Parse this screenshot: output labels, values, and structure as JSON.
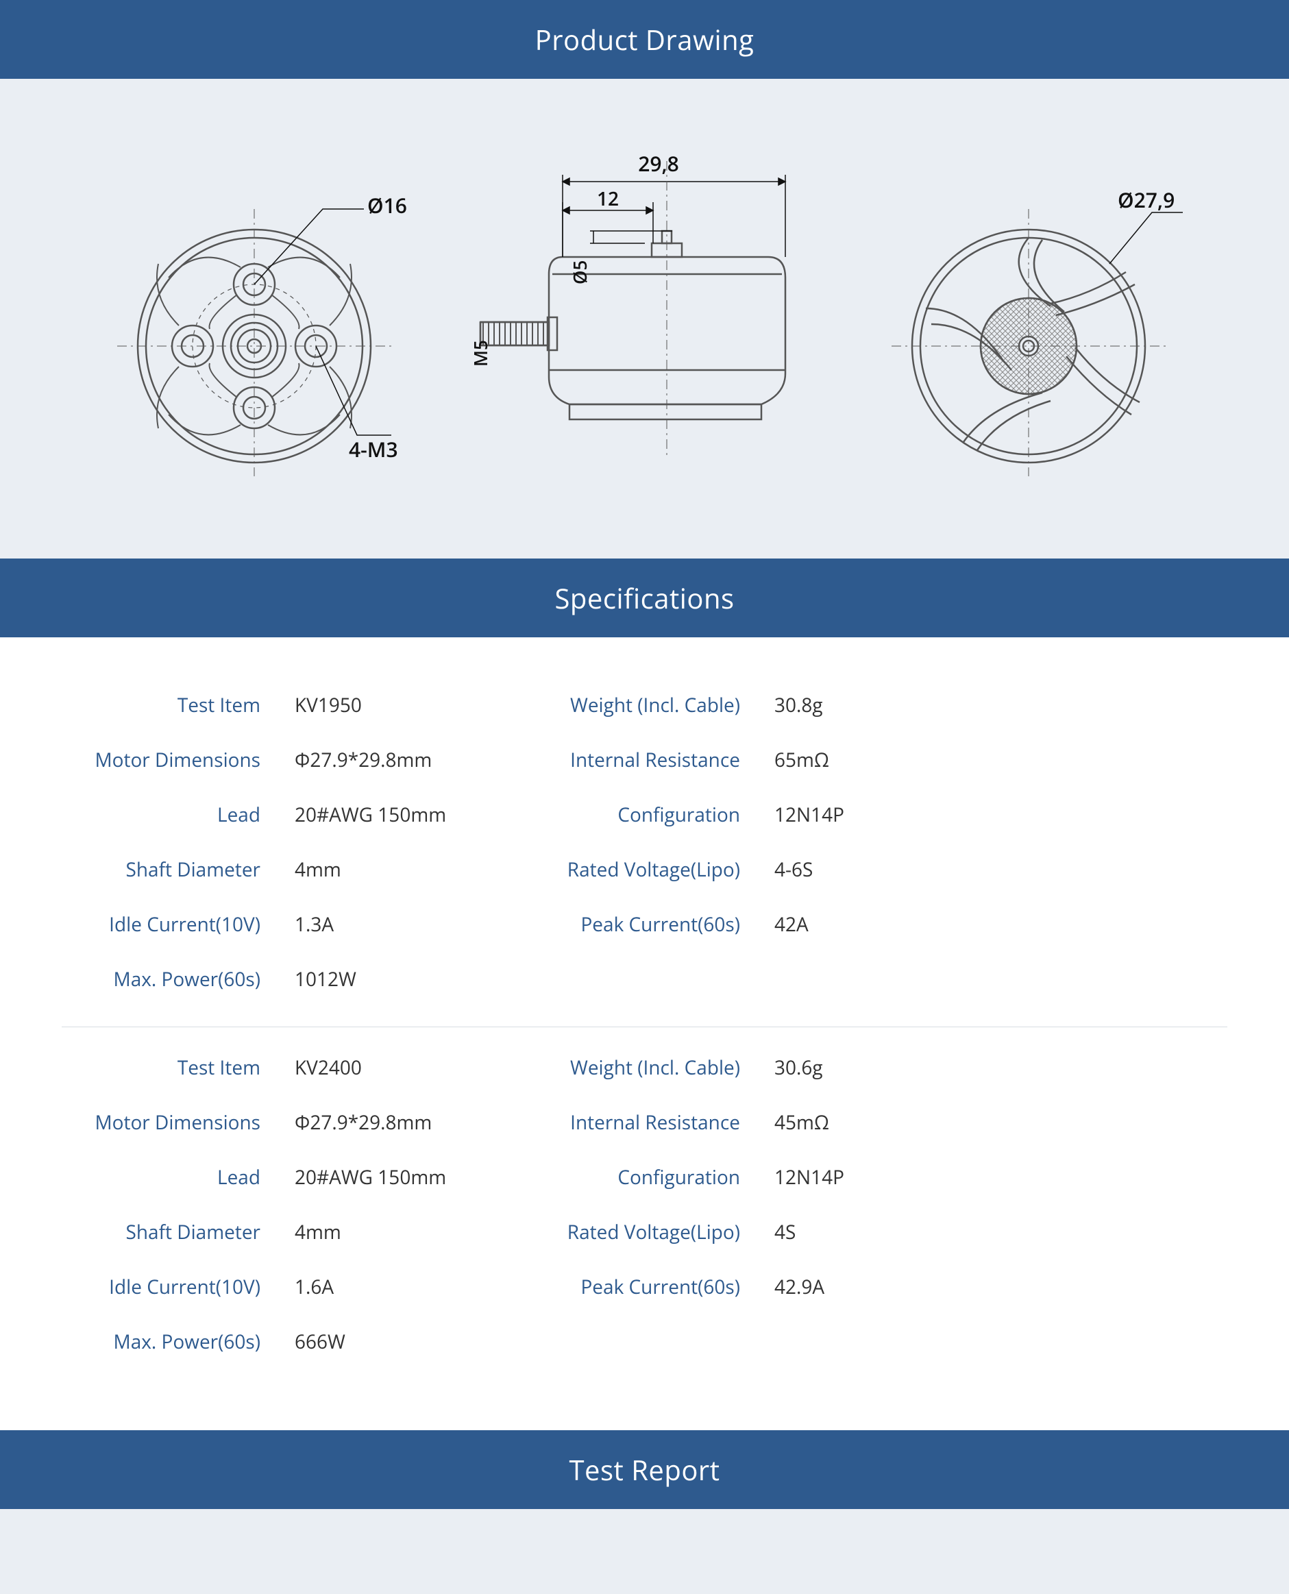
{
  "colors": {
    "header_bg": "#2e5a8e",
    "header_text": "#ffffff",
    "page_bg": "#eaeef3",
    "spec_bg": "#ffffff",
    "label_color": "#2e5a8e",
    "value_color": "#333333",
    "divider": "#d9dde2",
    "drawing_stroke": "#555555",
    "drawing_text": "#111111",
    "hatch": "#8a8a8a"
  },
  "headers": {
    "drawing": "Product Drawing",
    "specs": "Specifications",
    "report": "Test Report"
  },
  "drawing": {
    "bottom_view": {
      "outer_diameter_label": "Ø16",
      "mount_hole_label": "4-M3"
    },
    "side_view": {
      "total_height_label": "29,8",
      "shoulder_height_label": "12",
      "shaft_diameter_label": "Ø5",
      "thread_label": "M5"
    },
    "top_view": {
      "bell_diameter_label": "Ø27,9"
    }
  },
  "spec_blocks": [
    {
      "rows": [
        {
          "l1": "Test Item",
          "v1": "KV1950",
          "l2": "Weight (Incl. Cable)",
          "v2": "30.8g"
        },
        {
          "l1": "Motor Dimensions",
          "v1": "Φ27.9*29.8mm",
          "l2": "Internal Resistance",
          "v2": "65mΩ"
        },
        {
          "l1": "Lead",
          "v1": "20#AWG 150mm",
          "l2": "Configuration",
          "v2": "12N14P"
        },
        {
          "l1": "Shaft Diameter",
          "v1": "4mm",
          "l2": "Rated Voltage(Lipo)",
          "v2": "4-6S"
        },
        {
          "l1": "Idle Current(10V)",
          "v1": "1.3A",
          "l2": "Peak Current(60s)",
          "v2": "42A"
        },
        {
          "l1": "Max. Power(60s)",
          "v1": "1012W",
          "l2": "",
          "v2": ""
        }
      ]
    },
    {
      "rows": [
        {
          "l1": "Test Item",
          "v1": "KV2400",
          "l2": "Weight (Incl. Cable)",
          "v2": "30.6g"
        },
        {
          "l1": "Motor Dimensions",
          "v1": "Φ27.9*29.8mm",
          "l2": "Internal Resistance",
          "v2": "45mΩ"
        },
        {
          "l1": "Lead",
          "v1": "20#AWG 150mm",
          "l2": "Configuration",
          "v2": "12N14P"
        },
        {
          "l1": "Shaft Diameter",
          "v1": "4mm",
          "l2": "Rated Voltage(Lipo)",
          "v2": "4S"
        },
        {
          "l1": "Idle Current(10V)",
          "v1": "1.6A",
          "l2": "Peak Current(60s)",
          "v2": "42.9A"
        },
        {
          "l1": "Max. Power(60s)",
          "v1": "666W",
          "l2": "",
          "v2": ""
        }
      ]
    }
  ]
}
